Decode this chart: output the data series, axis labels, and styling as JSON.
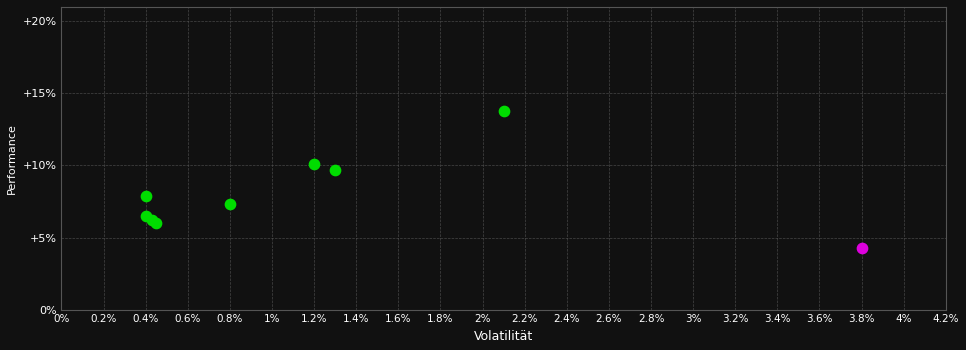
{
  "background_color": "#111111",
  "plot_bg_color": "#111111",
  "grid_color": "#555555",
  "text_color": "#ffffff",
  "xlabel": "Volatilität",
  "ylabel": "Performance",
  "xlim": [
    0,
    0.042
  ],
  "ylim": [
    0,
    0.21
  ],
  "xtick_values": [
    0,
    0.002,
    0.004,
    0.006,
    0.008,
    0.01,
    0.012,
    0.014,
    0.016,
    0.018,
    0.02,
    0.022,
    0.024,
    0.026,
    0.028,
    0.03,
    0.032,
    0.034,
    0.036,
    0.038,
    0.04,
    0.042
  ],
  "xtick_labels": [
    "0%",
    "0.2%",
    "0.4%",
    "0.6%",
    "0.8%",
    "1%",
    "1.2%",
    "1.4%",
    "1.6%",
    "1.8%",
    "2%",
    "2.2%",
    "2.4%",
    "2.6%",
    "2.8%",
    "3%",
    "3.2%",
    "3.4%",
    "3.6%",
    "3.8%",
    "4%",
    "4.2%"
  ],
  "ytick_values": [
    0,
    0.05,
    0.1,
    0.15,
    0.2
  ],
  "ytick_labels": [
    "0%",
    "+5%",
    "+10%",
    "+15%",
    "+20%"
  ],
  "green_points": [
    [
      0.004,
      0.065
    ],
    [
      0.0043,
      0.062
    ],
    [
      0.0045,
      0.06
    ],
    [
      0.004,
      0.079
    ],
    [
      0.008,
      0.073
    ],
    [
      0.012,
      0.101
    ],
    [
      0.013,
      0.097
    ],
    [
      0.021,
      0.138
    ]
  ],
  "magenta_points": [
    [
      0.038,
      0.043
    ]
  ],
  "green_color": "#00dd00",
  "magenta_color": "#dd00dd",
  "marker_size": 55
}
